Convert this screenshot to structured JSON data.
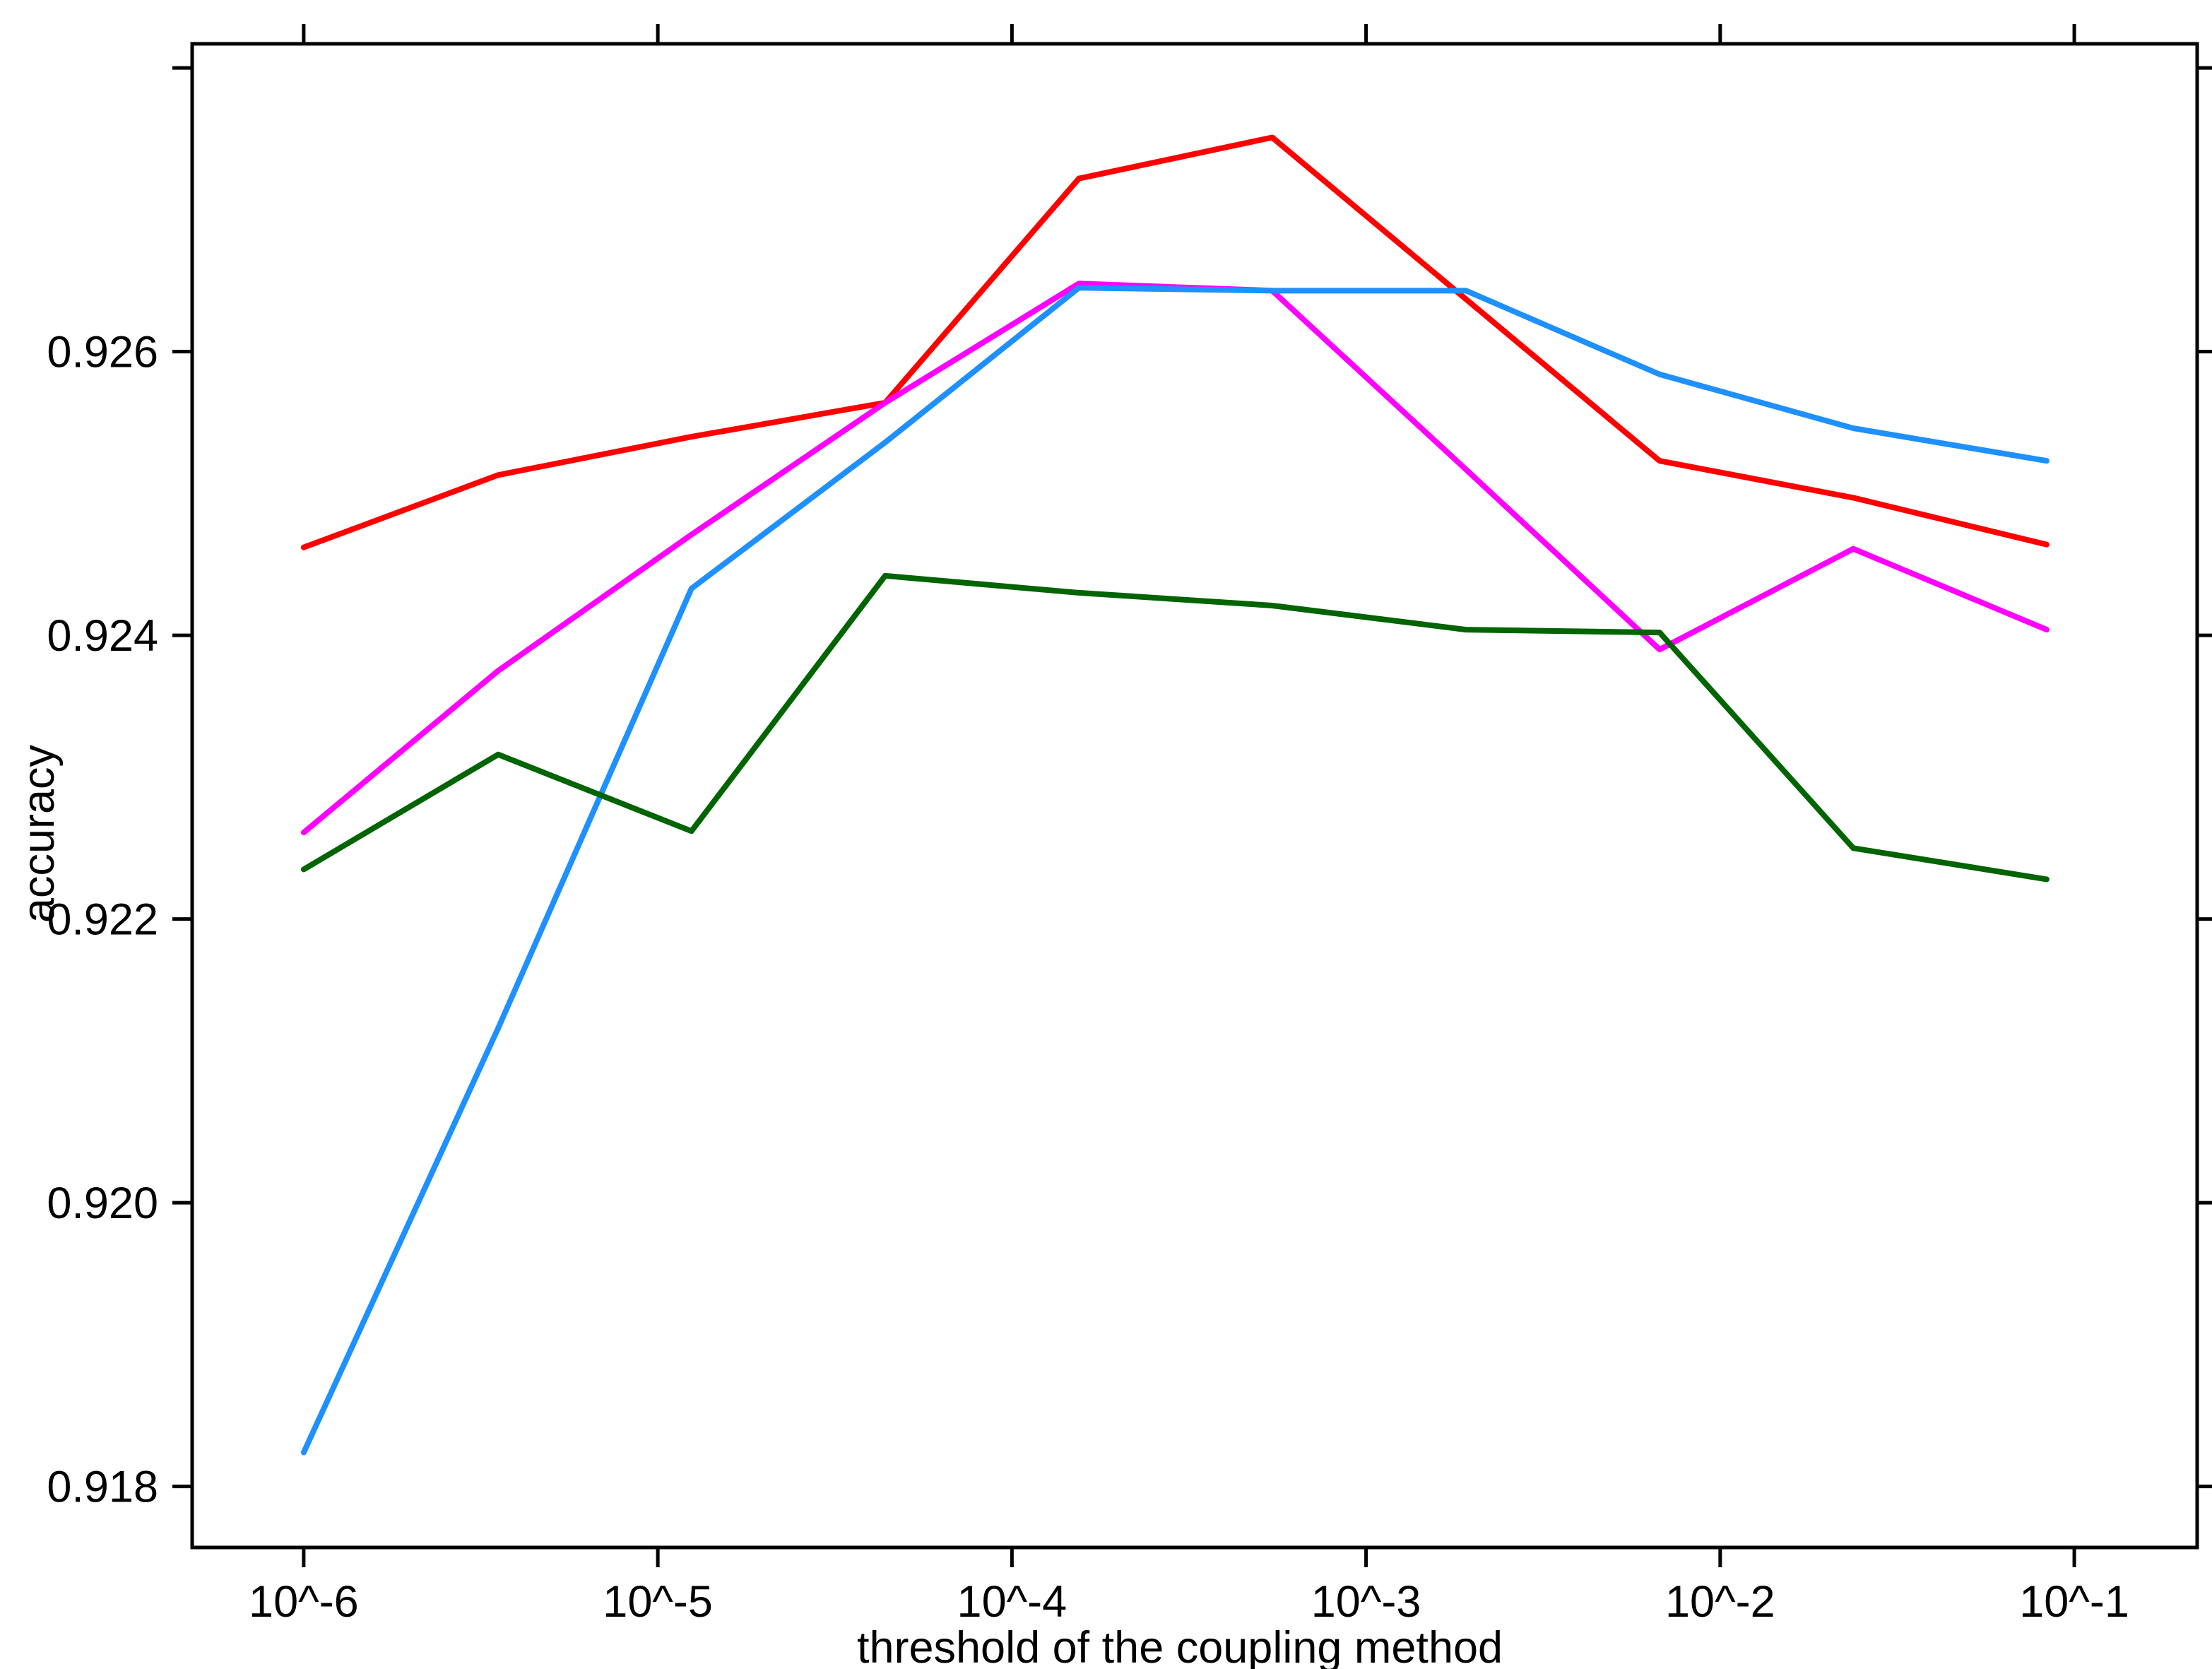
{
  "figure": {
    "background": "#ffffff",
    "border_color": "#000000"
  },
  "chart_data": {
    "type": "line",
    "title": "",
    "xlabel": "threshold of the coupling method",
    "ylabel": "accuracy",
    "grid": false,
    "legend": "none",
    "x_axis": {
      "scale": "log10",
      "range_log10": [
        -6.315,
        -0.653
      ],
      "tick_log10": [
        -6,
        -5,
        -4,
        -3,
        -2,
        -1
      ],
      "tick_labels": [
        "10^-6",
        "10^-5",
        "10^-4",
        "10^-3",
        "10^-2",
        "10^-1"
      ]
    },
    "y_axis": {
      "range": [
        0.91757,
        0.92817
      ],
      "ticks": [
        0.918,
        0.92,
        0.922,
        0.924,
        0.926,
        0.928
      ],
      "tick_labels": [
        "0.918",
        "0.920",
        "0.922",
        "0.924",
        "0.926",
        ""
      ]
    },
    "x_log10": [
      -6.0,
      -5.451,
      -4.905,
      -4.358,
      -3.811,
      -3.265,
      -2.718,
      -2.171,
      -1.624,
      -1.078
    ],
    "series": [
      {
        "name": "red-line",
        "color": "#ff0000",
        "values": [
          0.92462,
          0.92513,
          0.9254,
          0.92564,
          0.92722,
          0.92751,
          0.92637,
          0.92523,
          0.92497,
          0.92464
        ]
      },
      {
        "name": "magenta-line",
        "color": "#ff00ff",
        "values": [
          0.92261,
          0.92375,
          0.92471,
          0.92564,
          0.92648,
          0.92643,
          0.92517,
          0.9239,
          0.92461,
          0.92404
        ]
      },
      {
        "name": "blue-line",
        "color": "#1e90ff",
        "values": [
          0.91824,
          0.92123,
          0.92433,
          0.92536,
          0.92645,
          0.92643,
          0.92643,
          0.92584,
          0.92546,
          0.92523
        ]
      },
      {
        "name": "darkgreen-line",
        "color": "#006400",
        "values": [
          0.92235,
          0.92316,
          0.92262,
          0.92442,
          0.9243,
          0.92421,
          0.92404,
          0.92402,
          0.9225,
          0.92228
        ]
      }
    ]
  }
}
